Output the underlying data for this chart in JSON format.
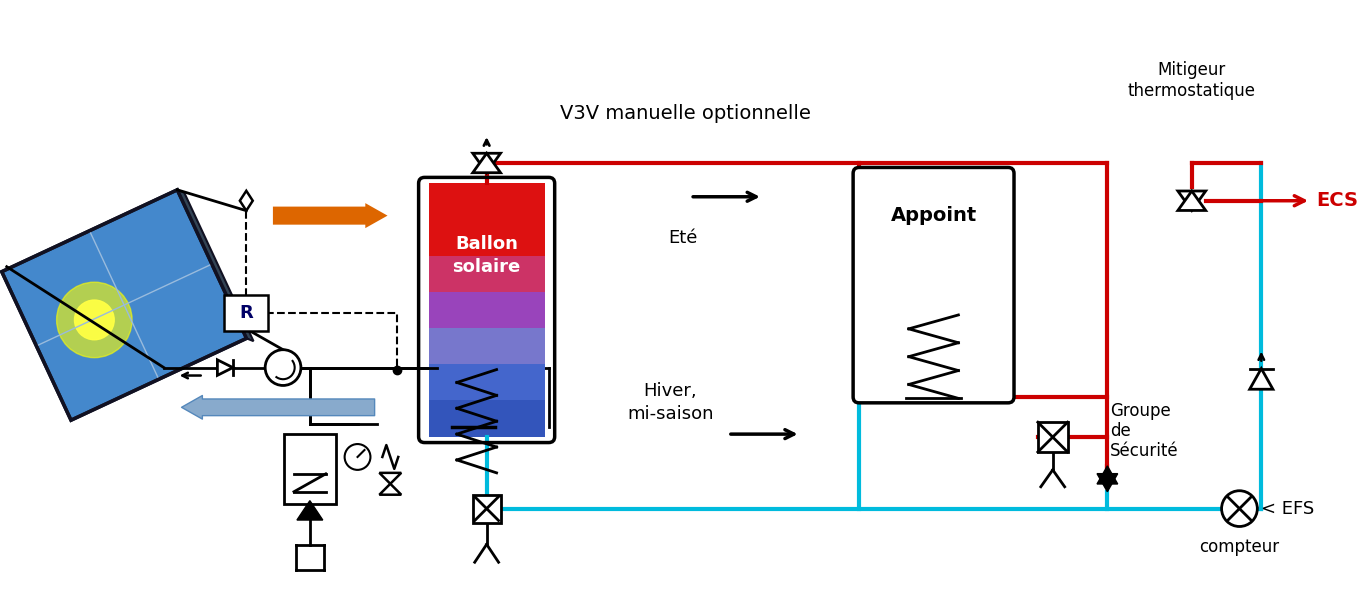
{
  "bg": "#ffffff",
  "red": "#cc0000",
  "cyan": "#00bbdd",
  "orange": "#dd6600",
  "blue_arrow": "#88aacc",
  "black": "#000000",
  "panel_blue": "#4488cc",
  "ballon_top": "#dd1111",
  "ballon_mid": "#aa55aa",
  "ballon_bot": "#3355cc",
  "label_v3v": "V3V manuelle optionnelle",
  "label_mitigeur_1": "Mitigeur",
  "label_mitigeur_2": "thermostatique",
  "label_ecs": "ECS",
  "label_efs": "< EFS",
  "label_compteur": "compteur",
  "label_ballon_1": "Ballon",
  "label_ballon_2": "solaire",
  "label_appoint": "Appoint",
  "label_ete": "Eté",
  "label_hiver_1": "Hiver,",
  "label_hiver_2": "mi-saison",
  "label_groupe_1": "Groupe",
  "label_groupe_2": "de",
  "label_groupe_3": "Sécurité"
}
